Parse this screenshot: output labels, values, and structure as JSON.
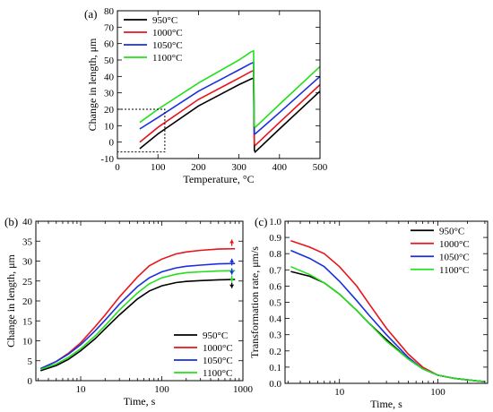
{
  "chart_data": [
    {
      "panel": "(a)",
      "type": "line",
      "xlabel": "Temperature, °C",
      "ylabel": "Change in length, μm",
      "xlim": [
        0,
        500
      ],
      "ylim": [
        -10,
        80
      ],
      "xticks": [
        0,
        100,
        200,
        300,
        400,
        500
      ],
      "yticks": [
        -10,
        0,
        10,
        20,
        30,
        40,
        50,
        60,
        70,
        80
      ],
      "legend": "top-left",
      "annotation": "dotted rectangle around initial segment",
      "series": [
        {
          "name": "950°C",
          "color": "#000000",
          "x": [
            55,
            100,
            200,
            300,
            330,
            336,
            338,
            340,
            400,
            500
          ],
          "y": [
            -4,
            5,
            22,
            35,
            38.5,
            39,
            -5,
            -6,
            8,
            31
          ]
        },
        {
          "name": "1000°C",
          "color": "#e8141b",
          "x": [
            55,
            100,
            200,
            300,
            330,
            336,
            338,
            340,
            400,
            500
          ],
          "y": [
            0,
            9,
            26,
            39,
            43,
            43.5,
            -1,
            -2,
            12,
            35
          ]
        },
        {
          "name": "1050°C",
          "color": "#1a2ee0",
          "x": [
            55,
            100,
            200,
            300,
            330,
            336,
            338,
            340,
            400,
            500
          ],
          "y": [
            8,
            15,
            31,
            44,
            48,
            48.5,
            5,
            5,
            18,
            40
          ]
        },
        {
          "name": "1100°C",
          "color": "#22e01a",
          "x": [
            55,
            100,
            200,
            300,
            330,
            336,
            338,
            340,
            400,
            500
          ],
          "y": [
            12,
            20,
            36,
            50,
            55,
            55.5,
            10,
            9,
            23,
            46
          ]
        }
      ]
    },
    {
      "panel": "(b)",
      "type": "line",
      "xlabel": "Time, s",
      "ylabel": "Change in length, μm",
      "xscale": "log",
      "xlim": [
        2.8,
        1000
      ],
      "ylim": [
        0,
        40
      ],
      "xticks": [
        10,
        100,
        1000
      ],
      "yticks": [
        0,
        5,
        10,
        15,
        20,
        25,
        30,
        35,
        40
      ],
      "legend": "bottom-right",
      "annotation": "arrows near curve ends at ~700 s",
      "series": [
        {
          "name": "950°C",
          "color": "#000000",
          "x": [
            3.2,
            5,
            7,
            10,
            15,
            20,
            30,
            50,
            70,
            100,
            150,
            200,
            300,
            500,
            800
          ],
          "y": [
            2.5,
            3.8,
            5.3,
            7.5,
            10.5,
            13,
            16.5,
            20.5,
            22.5,
            23.8,
            24.6,
            24.9,
            25.1,
            25.3,
            25.4
          ]
        },
        {
          "name": "1000°C",
          "color": "#e8141b",
          "x": [
            3.2,
            5,
            7,
            10,
            15,
            20,
            30,
            50,
            70,
            100,
            150,
            200,
            300,
            500,
            800
          ],
          "y": [
            3.0,
            4.8,
            6.8,
            9.5,
            13.5,
            16.5,
            21,
            26,
            28.8,
            30.5,
            31.8,
            32.3,
            32.7,
            33.0,
            33.1
          ]
        },
        {
          "name": "1050°C",
          "color": "#1a2ee0",
          "x": [
            3.2,
            5,
            7,
            10,
            15,
            20,
            30,
            50,
            70,
            100,
            150,
            200,
            300,
            500,
            800
          ],
          "y": [
            3.0,
            4.8,
            6.6,
            9.0,
            12.5,
            15.2,
            19.2,
            23.6,
            25.8,
            27.3,
            28.3,
            28.7,
            29.0,
            29.3,
            29.4
          ]
        },
        {
          "name": "1100°C",
          "color": "#22e01a",
          "x": [
            3.2,
            5,
            7,
            10,
            15,
            20,
            30,
            50,
            70,
            100,
            150,
            200,
            300,
            500,
            800
          ],
          "y": [
            2.8,
            4.2,
            5.8,
            8.0,
            11.2,
            13.8,
            17.7,
            22.0,
            24.3,
            25.8,
            26.7,
            27.1,
            27.3,
            27.5,
            27.6
          ]
        }
      ]
    },
    {
      "panel": "(c)",
      "type": "line",
      "xlabel": "Time, s",
      "ylabel": "Transformation rate, μm/s",
      "xscale": "log",
      "xlim": [
        2.8,
        320
      ],
      "ylim": [
        0,
        1.0
      ],
      "xticks": [
        10,
        100
      ],
      "yticks": [
        0.0,
        0.1,
        0.2,
        0.3,
        0.4,
        0.5,
        0.6,
        0.7,
        0.8,
        0.9,
        1.0
      ],
      "legend": "top-right",
      "series": [
        {
          "name": "950°C",
          "color": "#000000",
          "x": [
            3.2,
            5,
            7,
            10,
            15,
            20,
            30,
            50,
            70,
            100,
            150,
            250,
            300
          ],
          "y": [
            0.69,
            0.66,
            0.62,
            0.55,
            0.45,
            0.37,
            0.27,
            0.15,
            0.09,
            0.05,
            0.03,
            0.015,
            0.01
          ]
        },
        {
          "name": "1000°C",
          "color": "#e8141b",
          "x": [
            3.2,
            5,
            7,
            10,
            15,
            20,
            30,
            50,
            70,
            100,
            150,
            250,
            300
          ],
          "y": [
            0.88,
            0.84,
            0.8,
            0.72,
            0.6,
            0.49,
            0.34,
            0.18,
            0.1,
            0.05,
            0.03,
            0.015,
            0.01
          ]
        },
        {
          "name": "1050°C",
          "color": "#1a2ee0",
          "x": [
            3.2,
            5,
            7,
            10,
            15,
            20,
            30,
            50,
            70,
            100,
            150,
            250,
            300
          ],
          "y": [
            0.82,
            0.77,
            0.72,
            0.63,
            0.51,
            0.42,
            0.3,
            0.16,
            0.09,
            0.05,
            0.03,
            0.015,
            0.01
          ]
        },
        {
          "name": "1100°C",
          "color": "#22e01a",
          "x": [
            3.2,
            5,
            7,
            10,
            15,
            20,
            30,
            50,
            70,
            100,
            150,
            250,
            300
          ],
          "y": [
            0.72,
            0.67,
            0.62,
            0.55,
            0.45,
            0.37,
            0.26,
            0.15,
            0.09,
            0.05,
            0.03,
            0.015,
            0.01
          ]
        }
      ]
    }
  ]
}
